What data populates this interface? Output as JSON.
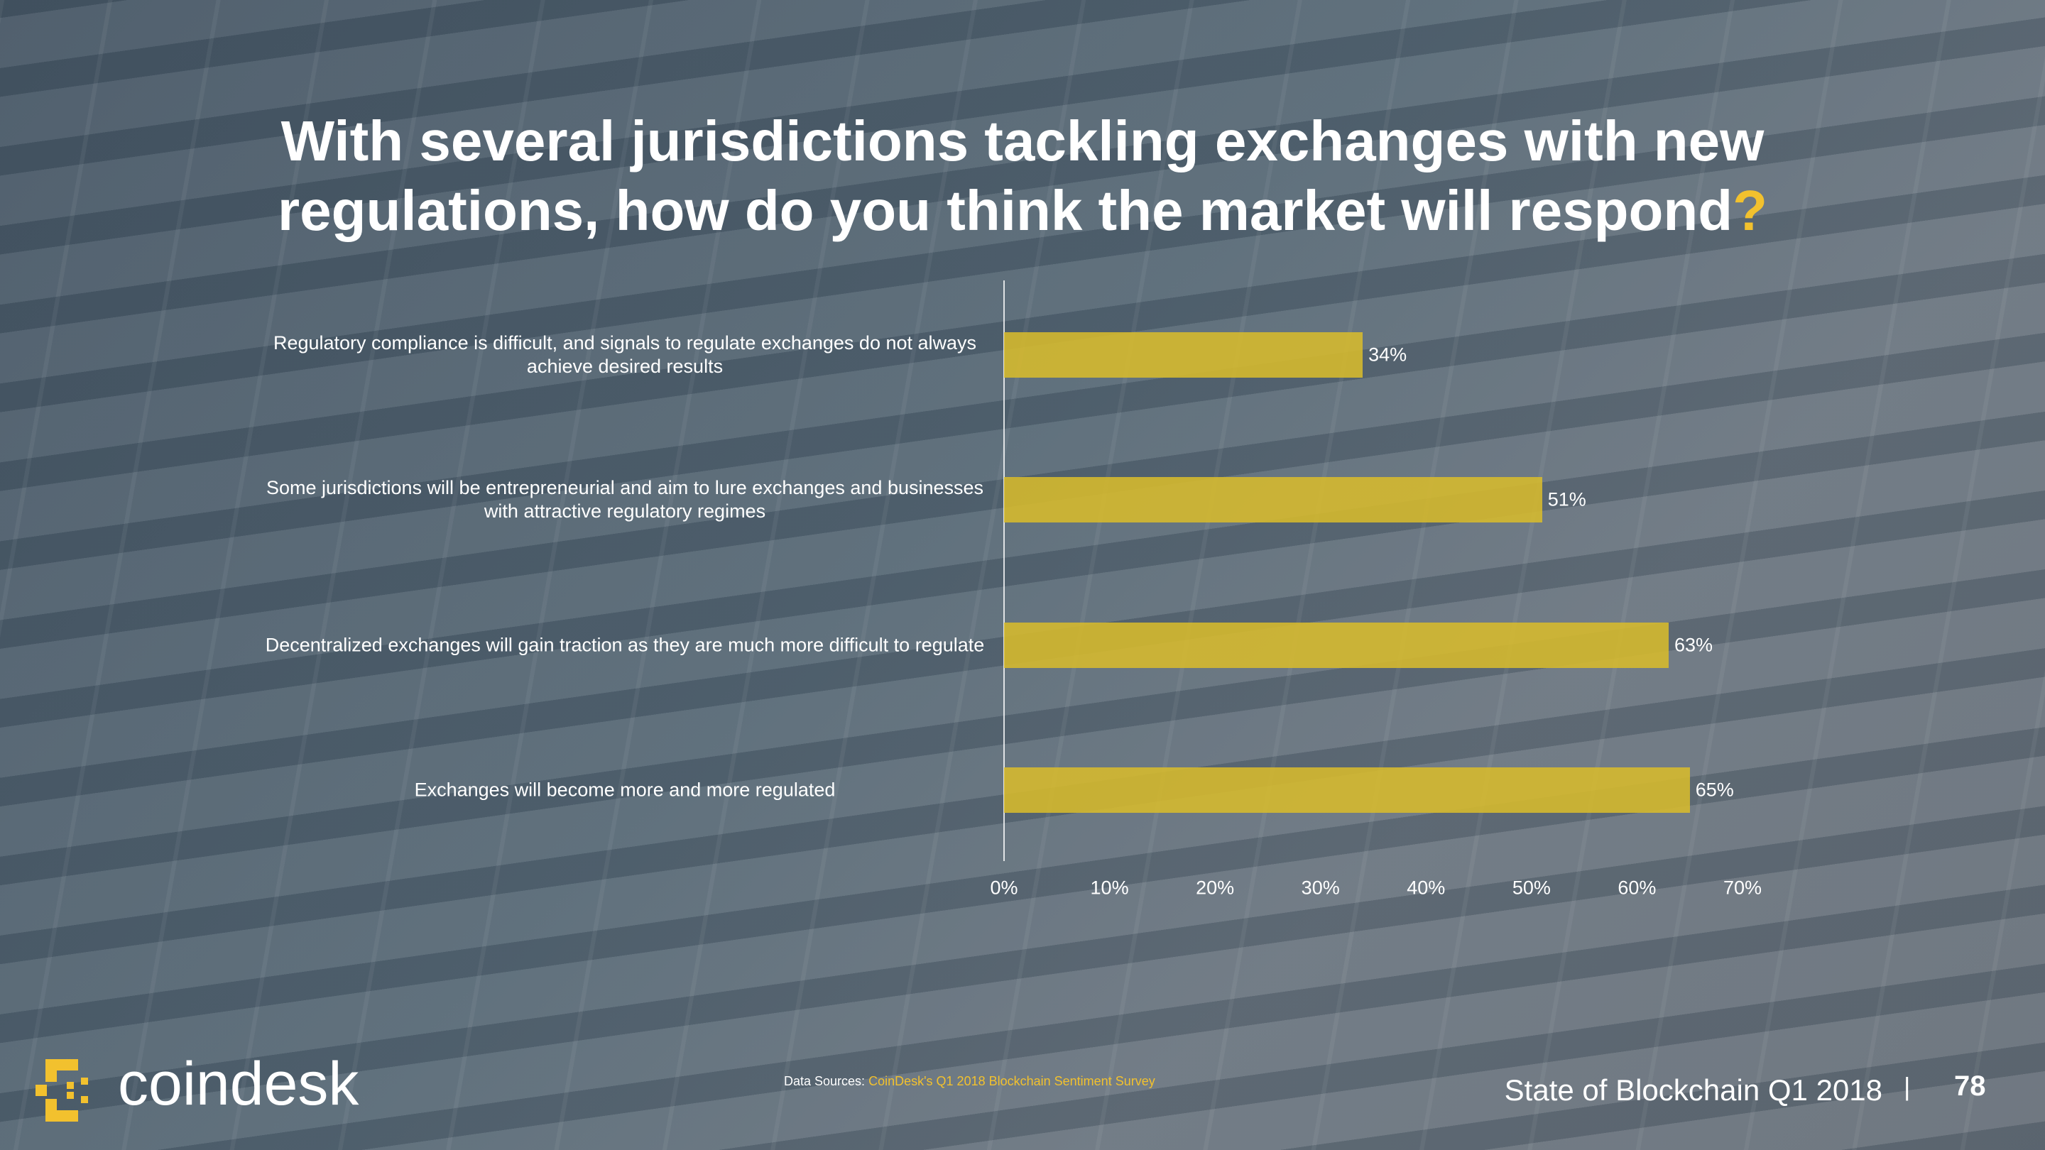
{
  "chart_data": {
    "type": "bar",
    "orientation": "horizontal",
    "title": "With several jurisdictions tackling exchanges with new regulations, how do you think the market will respond",
    "title_mark": "?",
    "categories": [
      "Regulatory compliance is difficult, and signals to regulate exchanges do not always achieve desired results",
      "Some jurisdictions will be entrepreneurial and aim to lure exchanges and businesses with attractive regulatory regimes",
      "Decentralized exchanges will gain traction as they are much more difficult to regulate",
      "Exchanges will become more and more regulated"
    ],
    "values": [
      34,
      51,
      63,
      65
    ],
    "value_labels": [
      "34%",
      "51%",
      "63%",
      "65%"
    ],
    "color": "#d7bb2c",
    "xlim": [
      0,
      70
    ],
    "xticks": [
      {
        "value": 0,
        "label": "0%"
      },
      {
        "value": 10,
        "label": "10%"
      },
      {
        "value": 20,
        "label": "20%"
      },
      {
        "value": 30,
        "label": "30%"
      },
      {
        "value": 40,
        "label": "40%"
      },
      {
        "value": 50,
        "label": "50%"
      },
      {
        "value": 60,
        "label": "60%"
      },
      {
        "value": 70,
        "label": "70%"
      }
    ],
    "grid": false
  },
  "footer": {
    "logo": "coindesk",
    "source_label": "Data Sources:",
    "source": "CoinDesk's Q1 2018 Blockchain Sentiment Survey",
    "report": "State of Blockchain Q1 2018",
    "separator": "|",
    "page": "78"
  }
}
